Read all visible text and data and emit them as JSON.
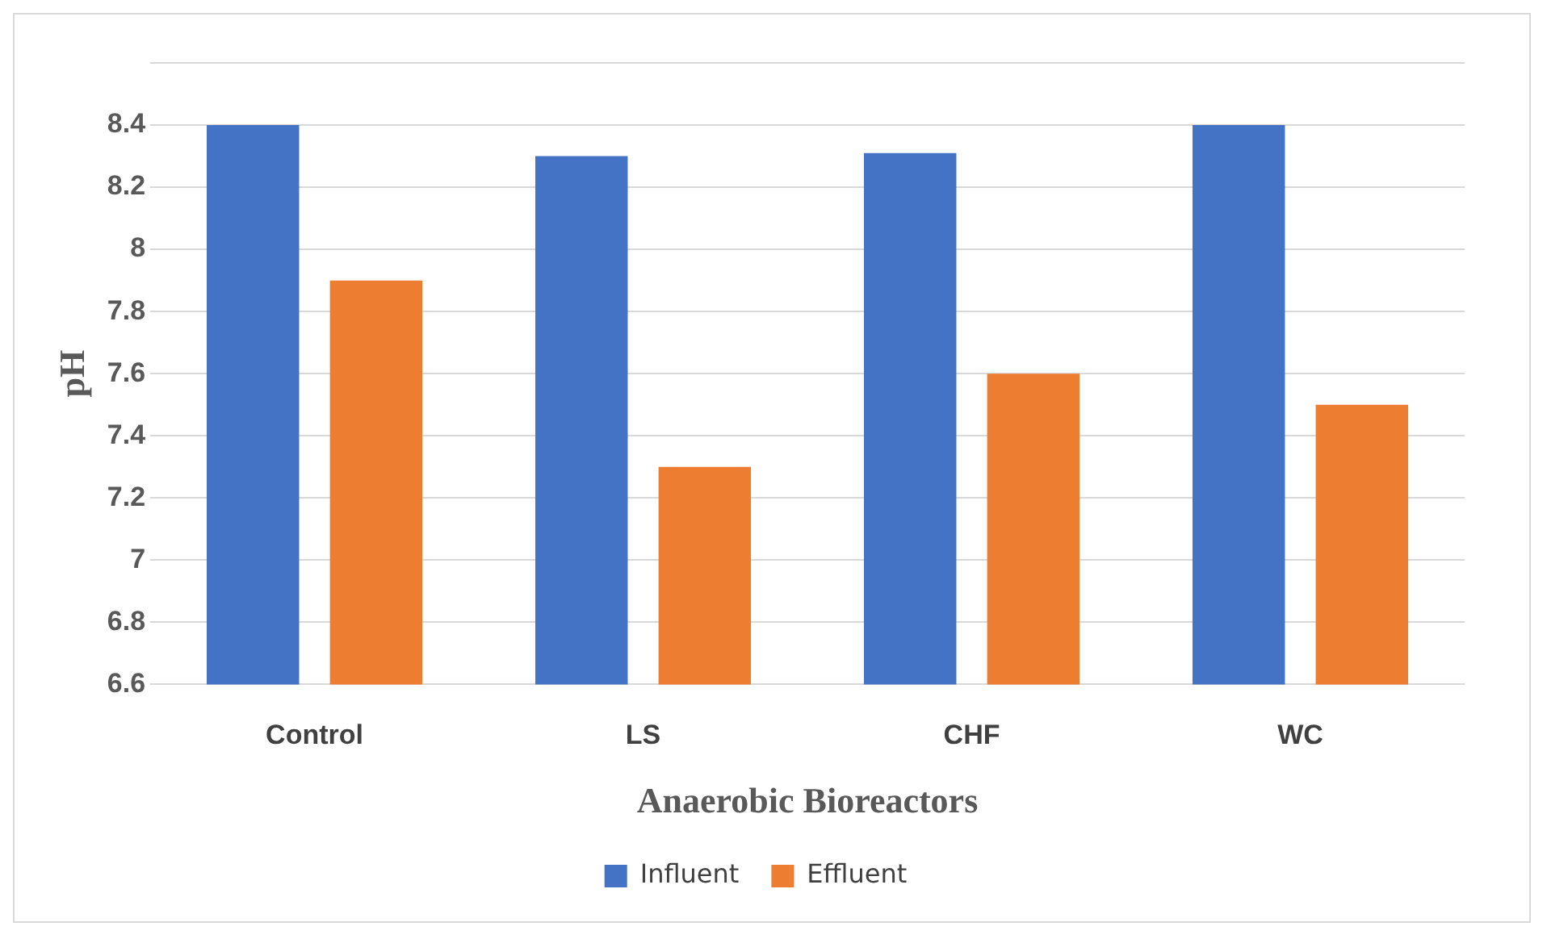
{
  "chart_data": {
    "type": "bar",
    "xlabel": "Anaerobic Bioreactors",
    "ylabel": "pH",
    "categories": [
      "Control",
      "LS",
      "CHF",
      "WC"
    ],
    "series": [
      {
        "name": "Influent",
        "color": "#4472c4",
        "values": [
          8.4,
          8.3,
          8.31,
          8.4
        ]
      },
      {
        "name": "Effluent",
        "color": "#ed7d31",
        "values": [
          7.9,
          7.3,
          7.6,
          7.5
        ]
      }
    ],
    "ylim": [
      6.6,
      8.6
    ],
    "yticks": [
      6.6,
      6.8,
      7,
      7.2,
      7.4,
      7.6,
      7.8,
      8,
      8.2,
      8.4,
      {
        "value": 8.6,
        "label": null
      }
    ],
    "grid": "y",
    "legend": "bottom"
  }
}
